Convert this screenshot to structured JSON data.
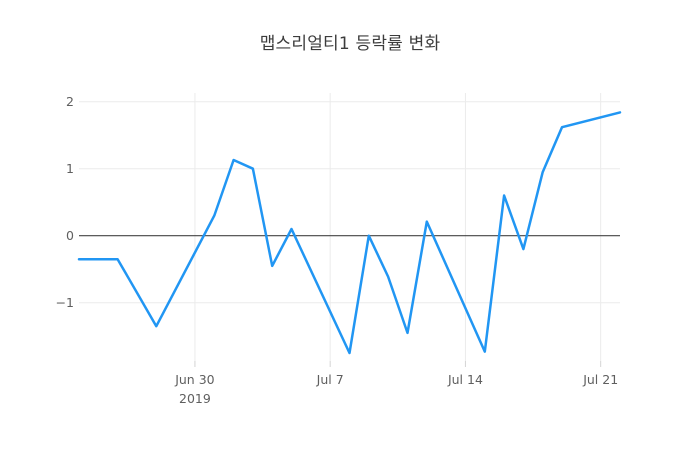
{
  "chart_data": {
    "type": "line",
    "title": "맵스리얼티1 등락률 변화",
    "xlabel": "",
    "ylabel": "",
    "legend": "none",
    "grid": true,
    "zeroline": true,
    "xlim": [
      "2019-06-24",
      "2019-07-22"
    ],
    "ylim": [
      -1.87,
      2.13
    ],
    "xticks": [
      {
        "date": "2019-06-30",
        "label": "Jun 30",
        "sublabel": "2019"
      },
      {
        "date": "2019-07-07",
        "label": "Jul 7",
        "sublabel": ""
      },
      {
        "date": "2019-07-14",
        "label": "Jul 14",
        "sublabel": ""
      },
      {
        "date": "2019-07-21",
        "label": "Jul 21",
        "sublabel": ""
      }
    ],
    "yticks": [
      {
        "value": 2,
        "label": "2"
      },
      {
        "value": 1,
        "label": "1"
      },
      {
        "value": 0,
        "label": "0"
      },
      {
        "value": -1,
        "label": "−1"
      }
    ],
    "series": [
      {
        "name": "등락률",
        "color": "#2196f3",
        "points": [
          {
            "date": "2019-06-24",
            "value": -0.35
          },
          {
            "date": "2019-06-25",
            "value": -0.35
          },
          {
            "date": "2019-06-26",
            "value": -0.35
          },
          {
            "date": "2019-06-27",
            "value": -0.85
          },
          {
            "date": "2019-06-28",
            "value": -1.35
          },
          {
            "date": "2019-07-01",
            "value": 0.3
          },
          {
            "date": "2019-07-02",
            "value": 1.13
          },
          {
            "date": "2019-07-03",
            "value": 1.0
          },
          {
            "date": "2019-07-04",
            "value": -0.45
          },
          {
            "date": "2019-07-05",
            "value": 0.1
          },
          {
            "date": "2019-07-08",
            "value": -1.75
          },
          {
            "date": "2019-07-09",
            "value": 0.0
          },
          {
            "date": "2019-07-10",
            "value": -0.61
          },
          {
            "date": "2019-07-11",
            "value": -1.45
          },
          {
            "date": "2019-07-12",
            "value": 0.21
          },
          {
            "date": "2019-07-15",
            "value": -1.73
          },
          {
            "date": "2019-07-16",
            "value": 0.6
          },
          {
            "date": "2019-07-17",
            "value": -0.2
          },
          {
            "date": "2019-07-18",
            "value": 0.95
          },
          {
            "date": "2019-07-19",
            "value": 1.62
          },
          {
            "date": "2019-07-22",
            "value": 1.84
          }
        ]
      }
    ]
  },
  "colors": {
    "background": "#ffffff",
    "line": "#2196f3",
    "grid": "#ebebeb",
    "tick_mark": "#d4d4d4",
    "zero_line": "#444444",
    "tick_label": "#5f5f5f",
    "title": "#3c3c3c"
  }
}
